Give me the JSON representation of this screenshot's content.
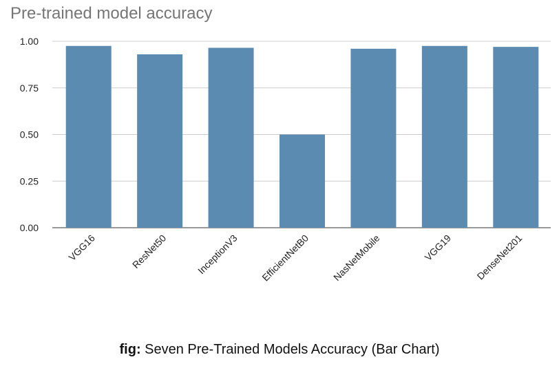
{
  "chart_data": {
    "type": "bar",
    "title": "Pre-trained model accuracy",
    "categories": [
      "VGG16",
      "ResNet50",
      "InceptionV3",
      "EfficientNetB0",
      "NasNetMobile",
      "VGG19",
      "DenseNet201"
    ],
    "values": [
      0.975,
      0.93,
      0.965,
      0.5,
      0.96,
      0.975,
      0.97
    ],
    "yticks": [
      "0.00",
      "0.25",
      "0.50",
      "0.75",
      "1.00"
    ],
    "ylim": [
      0,
      1.0
    ],
    "grid": true,
    "bar_color": "#5b8bb0"
  },
  "caption": {
    "prefix": "fig:",
    "text": " Seven Pre-Trained Models Accuracy (Bar Chart)"
  }
}
